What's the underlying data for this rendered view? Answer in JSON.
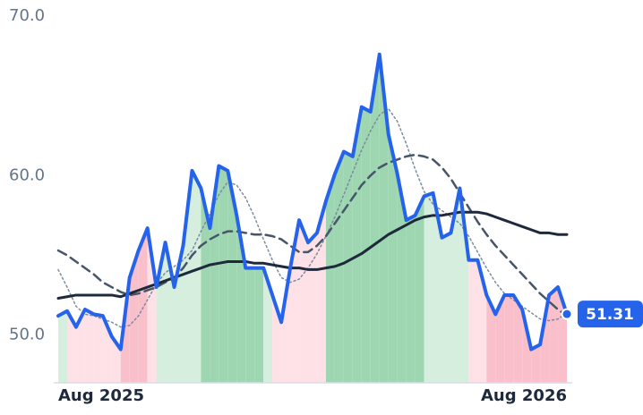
{
  "chart_data": {
    "type": "line",
    "categories": [
      "Aug 2025",
      null,
      null,
      null,
      null,
      null,
      null,
      null,
      null,
      null,
      null,
      null,
      null,
      null,
      null,
      null,
      null,
      null,
      null,
      null,
      null,
      null,
      null,
      null,
      null,
      null,
      null,
      null,
      null,
      null,
      null,
      null,
      null,
      null,
      null,
      null,
      null,
      null,
      null,
      null,
      null,
      null,
      null,
      null,
      null,
      null,
      null,
      null,
      null,
      null,
      null,
      null,
      null,
      null,
      null,
      null,
      null,
      "Aug 2026"
    ],
    "series": [
      {
        "color": "#2563eb",
        "style": "solid",
        "width": 4,
        "values": [
          51.2,
          51.5,
          50.5,
          51.6,
          51.3,
          51.2,
          49.9,
          49.1,
          53.6,
          55.3,
          56.7,
          53.0,
          55.8,
          53.0,
          55.6,
          60.3,
          59.2,
          56.7,
          60.6,
          60.3,
          57.5,
          54.2,
          54.2,
          54.2,
          52.5,
          50.8,
          54.2,
          57.2,
          55.8,
          56.4,
          58.4,
          60.1,
          61.5,
          61.2,
          64.3,
          64.0,
          67.6,
          62.6,
          60.1,
          57.2,
          57.5,
          58.7,
          58.9,
          56.1,
          56.4,
          59.2,
          54.7,
          54.7,
          52.5,
          51.3,
          52.5,
          52.5,
          51.6,
          49.1,
          49.4,
          52.5,
          53.0,
          51.31
        ]
      },
      {
        "color": "#7c8ba0",
        "style": "dotted",
        "width": 1.5,
        "values": [
          54.1,
          53.0,
          51.8,
          51.3,
          51.2,
          51.0,
          50.8,
          50.5,
          50.6,
          51.2,
          52.2,
          53.2,
          53.9,
          54.3,
          54.7,
          55.3,
          56.5,
          57.6,
          58.8,
          59.6,
          59.4,
          58.6,
          57.4,
          56.0,
          54.7,
          53.6,
          53.3,
          53.5,
          54.2,
          55.1,
          56.2,
          57.4,
          58.8,
          60.2,
          61.6,
          62.8,
          63.8,
          64.2,
          63.4,
          62.0,
          60.4,
          59.0,
          58.2,
          57.8,
          57.4,
          57.0,
          56.2,
          55.2,
          54.2,
          53.3,
          52.6,
          52.2,
          51.8,
          51.4,
          51.0,
          50.9,
          51.0,
          51.4
        ]
      },
      {
        "color": "#475569",
        "style": "dashed",
        "width": 2.5,
        "values": [
          55.3,
          55.0,
          54.6,
          54.2,
          53.8,
          53.3,
          53.0,
          52.7,
          52.5,
          52.6,
          52.8,
          53.0,
          53.3,
          53.6,
          54.2,
          55.0,
          55.6,
          56.0,
          56.3,
          56.5,
          56.5,
          56.4,
          56.3,
          56.3,
          56.2,
          56.0,
          55.6,
          55.2,
          55.2,
          55.6,
          56.2,
          57.0,
          57.8,
          58.6,
          59.4,
          60.0,
          60.5,
          60.8,
          61.0,
          61.2,
          61.3,
          61.2,
          61.0,
          60.5,
          59.8,
          58.9,
          58.0,
          57.1,
          56.3,
          55.6,
          55.0,
          54.4,
          53.8,
          53.2,
          52.6,
          52.1,
          51.6,
          51.2
        ]
      },
      {
        "color": "#1e293b",
        "style": "solid",
        "width": 3,
        "values": [
          52.3,
          52.4,
          52.5,
          52.5,
          52.5,
          52.5,
          52.5,
          52.4,
          52.6,
          52.8,
          53.0,
          53.2,
          53.4,
          53.6,
          53.8,
          54.0,
          54.2,
          54.4,
          54.5,
          54.6,
          54.6,
          54.6,
          54.5,
          54.5,
          54.4,
          54.3,
          54.2,
          54.2,
          54.1,
          54.1,
          54.2,
          54.3,
          54.5,
          54.8,
          55.1,
          55.5,
          55.9,
          56.3,
          56.6,
          56.9,
          57.2,
          57.4,
          57.5,
          57.5,
          57.6,
          57.7,
          57.7,
          57.7,
          57.6,
          57.4,
          57.2,
          57.0,
          56.8,
          56.6,
          56.4,
          56.4,
          56.3,
          56.3
        ]
      }
    ],
    "band_colors": [
      "#d5eedd",
      "#fde1e6",
      "#fde1e6",
      "#fde1e6",
      "#fde1e6",
      "#fde1e6",
      "#fde1e6",
      "#f9c0cb",
      "#f9c0cb",
      "#f9c0cb",
      "#fde1e6",
      "#d5eedd",
      "#d5eedd",
      "#d5eedd",
      "#d5eedd",
      "#d5eedd",
      "#9dd6b0",
      "#9dd6b0",
      "#9dd6b0",
      "#9dd6b0",
      "#9dd6b0",
      "#9dd6b0",
      "#9dd6b0",
      "#d5eedd",
      "#fde1e6",
      "#fde1e6",
      "#fde1e6",
      "#fde1e6",
      "#fde1e6",
      "#fde1e6",
      "#9dd6b0",
      "#9dd6b0",
      "#9dd6b0",
      "#9dd6b0",
      "#9dd6b0",
      "#9dd6b0",
      "#9dd6b0",
      "#9dd6b0",
      "#9dd6b0",
      "#9dd6b0",
      "#9dd6b0",
      "#d5eedd",
      "#d5eedd",
      "#d5eedd",
      "#d5eedd",
      "#d5eedd",
      "#fde1e6",
      "#fde1e6",
      "#f9c0cb",
      "#f9c0cb",
      "#f9c0cb",
      "#f9c0cb",
      "#f9c0cb",
      "#f9c0cb",
      "#f9c0cb",
      "#f9c0cb",
      "#f9c0cb",
      "#f9c0cb"
    ],
    "ylim": [
      47,
      70
    ],
    "yticks": [
      {
        "value": 50,
        "label": "50.0"
      },
      {
        "value": 60,
        "label": "60.0"
      },
      {
        "value": 70,
        "label": "70.0"
      }
    ]
  }
}
